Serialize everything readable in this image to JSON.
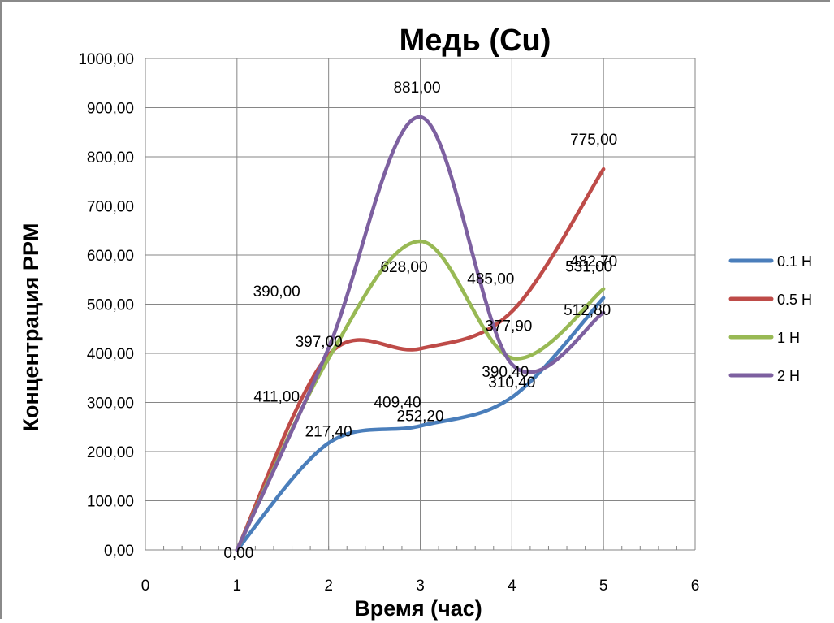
{
  "chart_data": {
    "type": "line",
    "title": "Медь (Cu)",
    "xlabel": "Время (час)",
    "ylabel": "Концентрация PPM",
    "xlim": [
      0,
      6
    ],
    "ylim": [
      0,
      1000
    ],
    "x_ticks": [
      "0",
      "1",
      "2",
      "3",
      "4",
      "5",
      "6"
    ],
    "y_ticks": [
      "0,00",
      "100,00",
      "200,00",
      "300,00",
      "400,00",
      "500,00",
      "600,00",
      "700,00",
      "800,00",
      "900,00",
      "1000,00"
    ],
    "grid": true,
    "legend_position": "right",
    "x": [
      1,
      2,
      3,
      4,
      5
    ],
    "series": [
      {
        "name": "0.1 Н",
        "color": "#4a7ebb",
        "values": [
          0,
          217.4,
          252.2,
          310.4,
          512.8
        ]
      },
      {
        "name": "0.5 Н",
        "color": "#be4b48",
        "values": [
          0,
          397,
          409.4,
          485,
          775
        ]
      },
      {
        "name": "1 Н",
        "color": "#98b954",
        "values": [
          0,
          390,
          628,
          390.4,
          531
        ]
      },
      {
        "name": "2 Н",
        "color": "#7d60a0",
        "values": [
          0,
          411,
          881,
          377.9,
          482.7
        ]
      }
    ],
    "data_labels": [
      "0,00",
      "217,40",
      "252,20",
      "310,40",
      "512,80",
      "397,00",
      "409,40",
      "485,00",
      "775,00",
      "390,00",
      "628,00",
      "390,40",
      "531,00",
      "411,00",
      "881,00",
      "377,90",
      "482,70"
    ]
  }
}
